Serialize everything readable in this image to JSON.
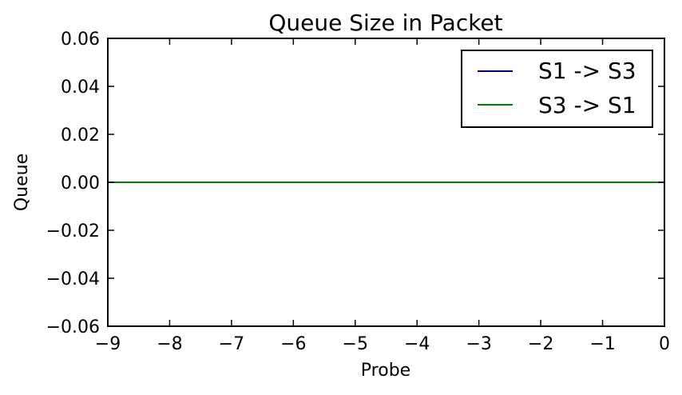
{
  "chart_data": {
    "type": "line",
    "title": "Queue Size in Packet",
    "xlabel": "Probe",
    "ylabel": "Queue",
    "xlim": [
      -9,
      0
    ],
    "ylim": [
      -0.06,
      0.06
    ],
    "xticks": [
      -9,
      -8,
      -7,
      -6,
      -5,
      -4,
      -3,
      -2,
      -1,
      0
    ],
    "xtick_labels": [
      "−9",
      "−8",
      "−7",
      "−6",
      "−5",
      "−4",
      "−3",
      "−2",
      "−1",
      "0"
    ],
    "yticks": [
      0.06,
      0.04,
      0.02,
      0.0,
      -0.02,
      -0.04,
      -0.06
    ],
    "ytick_labels": [
      "0.06",
      "0.04",
      "0.02",
      "0.00",
      "−0.02",
      "−0.04",
      "−0.06"
    ],
    "grid": false,
    "legend_position": "top-right",
    "series": [
      {
        "name": "S1 -> S3",
        "color": "#00008b",
        "x": [
          -9,
          0
        ],
        "y": [
          0,
          0
        ]
      },
      {
        "name": "S3 -> S1",
        "color": "#008000",
        "x": [
          -9,
          0
        ],
        "y": [
          0,
          0
        ]
      }
    ]
  }
}
